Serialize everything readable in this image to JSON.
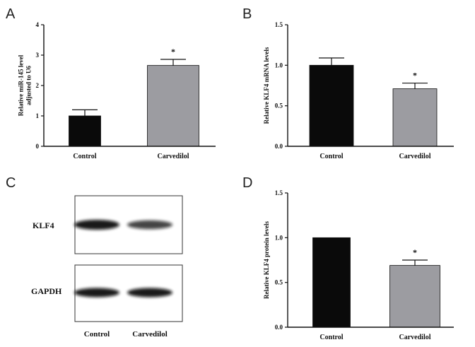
{
  "panels": {
    "a": {
      "letter": "A"
    },
    "b": {
      "letter": "B"
    },
    "c": {
      "letter": "C"
    },
    "d": {
      "letter": "D"
    }
  },
  "blot": {
    "rows": [
      {
        "label": "KLF4",
        "bands": [
          {
            "lane": "Control",
            "intensity": 1.0
          },
          {
            "lane": "Carvedilol",
            "intensity": 0.7
          }
        ]
      },
      {
        "label": "GAPDH",
        "bands": [
          {
            "lane": "Control",
            "intensity": 1.0
          },
          {
            "lane": "Carvedilol",
            "intensity": 1.0
          }
        ]
      }
    ],
    "lanes": [
      "Control",
      "Carvedilol"
    ]
  },
  "colors": {
    "control": "#0a0a0a",
    "carvedilol": "#9c9ca1",
    "axis": "#111111"
  },
  "chart_data": [
    {
      "panel": "A",
      "type": "bar",
      "categories": [
        "Control",
        "Carvedilol"
      ],
      "values": [
        1.0,
        2.66
      ],
      "errors": [
        0.2,
        0.2
      ],
      "significance": [
        "",
        "*"
      ],
      "ylabel_lines": [
        "Relative miR-145 level",
        "adjusted to U6"
      ],
      "ylim": [
        0,
        4
      ],
      "yticks": [
        "0",
        "1",
        "2",
        "3",
        "4"
      ],
      "ytick_values": [
        0,
        1,
        2,
        3,
        4
      ]
    },
    {
      "panel": "B",
      "type": "bar",
      "categories": [
        "Control",
        "Carvedilol"
      ],
      "values": [
        1.0,
        0.71
      ],
      "errors": [
        0.09,
        0.07
      ],
      "significance": [
        "",
        "*"
      ],
      "ylabel_lines": [
        "Relative KLF4 mRNA  levels"
      ],
      "ylim": [
        0,
        1.5
      ],
      "yticks": [
        "0.0",
        "0.5",
        "1.0",
        "1.5"
      ],
      "ytick_values": [
        0,
        0.5,
        1.0,
        1.5
      ]
    },
    {
      "panel": "D",
      "type": "bar",
      "categories": [
        "Control",
        "Carvedilol"
      ],
      "values": [
        1.0,
        0.69
      ],
      "errors": [
        0.0,
        0.06
      ],
      "significance": [
        "",
        "*"
      ],
      "ylabel_lines": [
        "Relative KLF4 protein levels"
      ],
      "ylim": [
        0,
        1.5
      ],
      "yticks": [
        "0.0",
        "0.5",
        "1.0",
        "1.5"
      ],
      "ytick_values": [
        0,
        0.5,
        1.0,
        1.5
      ]
    }
  ]
}
